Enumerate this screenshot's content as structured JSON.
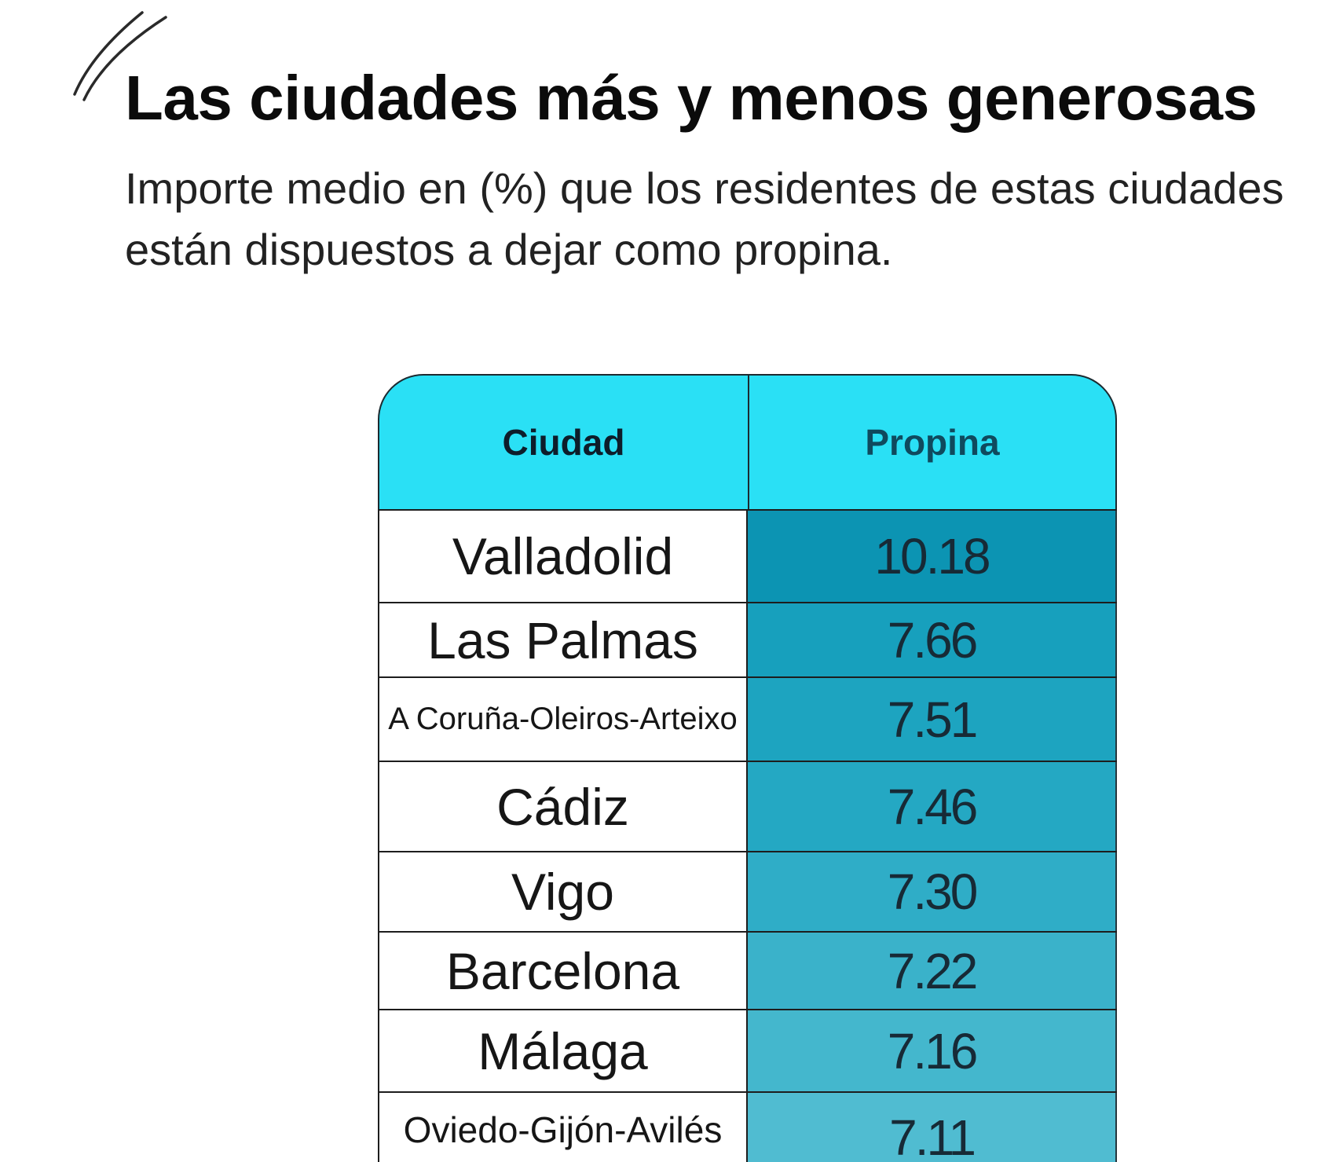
{
  "decoration": {
    "icon": "double-slash-icon"
  },
  "chart_data": {
    "type": "table",
    "title": "Las ciudades más y menos generosas",
    "subtitle": "Importe medio en (%) que los residentes de estas ciudades están dispuestos a dejar como propina.",
    "columns": [
      "Ciudad",
      "Propina"
    ],
    "header_color": "#2ae0f5",
    "rows": [
      {
        "city": "Valladolid",
        "tip": 10.18,
        "color": "#0c94b3"
      },
      {
        "city": "Las Palmas",
        "tip": 7.66,
        "color": "#17a0bd"
      },
      {
        "city": "A Coruña-Oleiros-Arteixo",
        "tip": 7.51,
        "color": "#1da4c0"
      },
      {
        "city": "Cádiz",
        "tip": 7.46,
        "color": "#24a8c3"
      },
      {
        "city": "Vigo",
        "tip": 7.3,
        "color": "#2fadc7"
      },
      {
        "city": "Barcelona",
        "tip": 7.22,
        "color": "#3ab2ca"
      },
      {
        "city": "Málaga",
        "tip": 7.16,
        "color": "#44b7cd"
      },
      {
        "city": "Oviedo-Gijón-Avilés",
        "tip": 7.11,
        "color": "#50bcd1"
      }
    ]
  }
}
